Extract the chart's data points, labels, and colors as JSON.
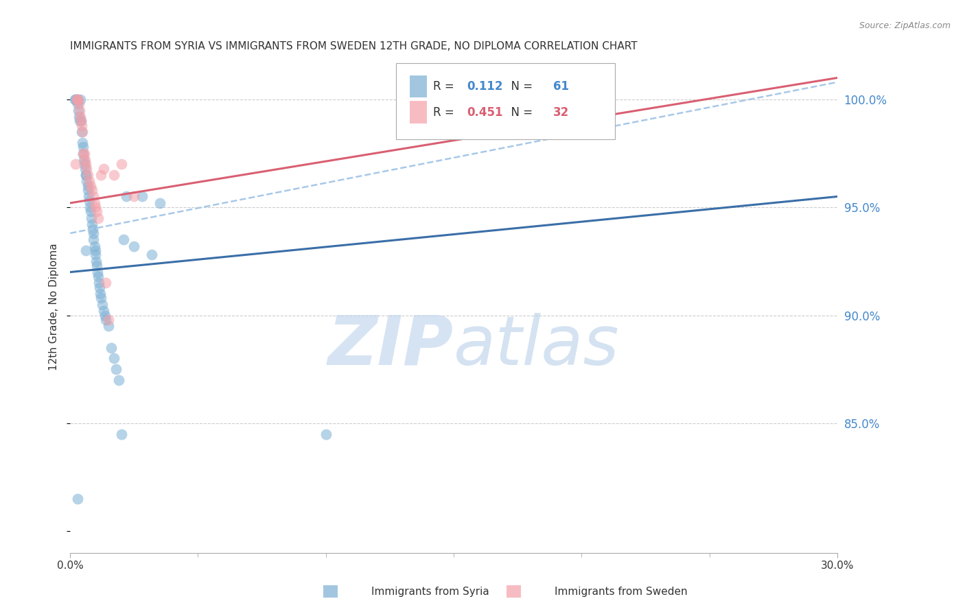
{
  "title": "IMMIGRANTS FROM SYRIA VS IMMIGRANTS FROM SWEDEN 12TH GRADE, NO DIPLOMA CORRELATION CHART",
  "source": "Source: ZipAtlas.com",
  "ylabel": "12th Grade, No Diploma",
  "xmin": 0.0,
  "xmax": 30.0,
  "ymin": 79.0,
  "ymax": 101.8,
  "yticks": [
    85.0,
    90.0,
    95.0,
    100.0
  ],
  "legend": {
    "syria_R": "0.112",
    "syria_N": "61",
    "sweden_R": "0.451",
    "sweden_N": "32"
  },
  "blue_color": "#7BAFD4",
  "pink_color": "#F4A0A8",
  "blue_line_color": "#3A6EA8",
  "pink_line_color": "#D95F72",
  "dashed_line_color": "#A8C8E8",
  "watermark_color": "#D8E8F4",
  "background": "#FFFFFF",
  "grid_color": "#CCCCCC",
  "axis_label_color": "#4488CC",
  "blue_reg_x0": 0.0,
  "blue_reg_y0": 92.0,
  "blue_reg_x1": 30.0,
  "blue_reg_y1": 95.5,
  "pink_reg_x0": 0.0,
  "pink_reg_y0": 95.2,
  "pink_reg_x1": 30.0,
  "pink_reg_y1": 101.0,
  "dash_x0": 0.0,
  "dash_y0": 93.8,
  "dash_x1": 30.0,
  "dash_y1": 100.8,
  "syria_x": [
    0.18,
    0.22,
    0.25,
    0.28,
    0.3,
    0.32,
    0.35,
    0.38,
    0.4,
    0.42,
    0.45,
    0.48,
    0.5,
    0.5,
    0.52,
    0.55,
    0.58,
    0.6,
    0.62,
    0.65,
    0.68,
    0.7,
    0.72,
    0.75,
    0.78,
    0.8,
    0.82,
    0.85,
    0.88,
    0.9,
    0.92,
    0.95,
    0.98,
    1.0,
    1.02,
    1.05,
    1.08,
    1.1,
    1.12,
    1.15,
    1.18,
    1.2,
    1.25,
    1.3,
    1.35,
    1.4,
    1.5,
    1.6,
    1.7,
    1.8,
    1.9,
    2.0,
    2.1,
    2.2,
    2.5,
    2.8,
    3.2,
    3.5,
    10.0,
    0.3,
    0.6
  ],
  "syria_y": [
    100.0,
    100.0,
    100.0,
    100.0,
    99.8,
    99.5,
    99.2,
    99.0,
    100.0,
    99.0,
    98.5,
    98.0,
    97.8,
    97.5,
    97.2,
    97.0,
    96.8,
    96.5,
    96.5,
    96.2,
    96.0,
    95.8,
    95.5,
    95.3,
    95.0,
    94.8,
    94.5,
    94.2,
    94.0,
    93.8,
    93.5,
    93.2,
    93.0,
    92.8,
    92.5,
    92.3,
    92.0,
    91.8,
    91.5,
    91.3,
    91.0,
    90.8,
    90.5,
    90.2,
    90.0,
    89.8,
    89.5,
    88.5,
    88.0,
    87.5,
    87.0,
    84.5,
    93.5,
    95.5,
    93.2,
    95.5,
    92.8,
    95.2,
    84.5,
    81.5,
    93.0
  ],
  "sweden_x": [
    0.2,
    0.25,
    0.28,
    0.3,
    0.35,
    0.38,
    0.4,
    0.42,
    0.45,
    0.48,
    0.5,
    0.55,
    0.58,
    0.62,
    0.65,
    0.7,
    0.75,
    0.8,
    0.85,
    0.9,
    0.95,
    1.0,
    1.05,
    1.1,
    1.2,
    1.3,
    1.4,
    1.5,
    1.7,
    2.0,
    2.5,
    20.0
  ],
  "sweden_y": [
    97.0,
    100.0,
    100.0,
    100.0,
    99.8,
    99.5,
    99.2,
    99.0,
    98.8,
    98.5,
    97.5,
    97.5,
    97.2,
    97.0,
    96.8,
    96.5,
    96.2,
    96.0,
    95.8,
    95.5,
    95.2,
    95.0,
    94.8,
    94.5,
    96.5,
    96.8,
    91.5,
    89.8,
    96.5,
    97.0,
    95.5,
    100.0
  ]
}
